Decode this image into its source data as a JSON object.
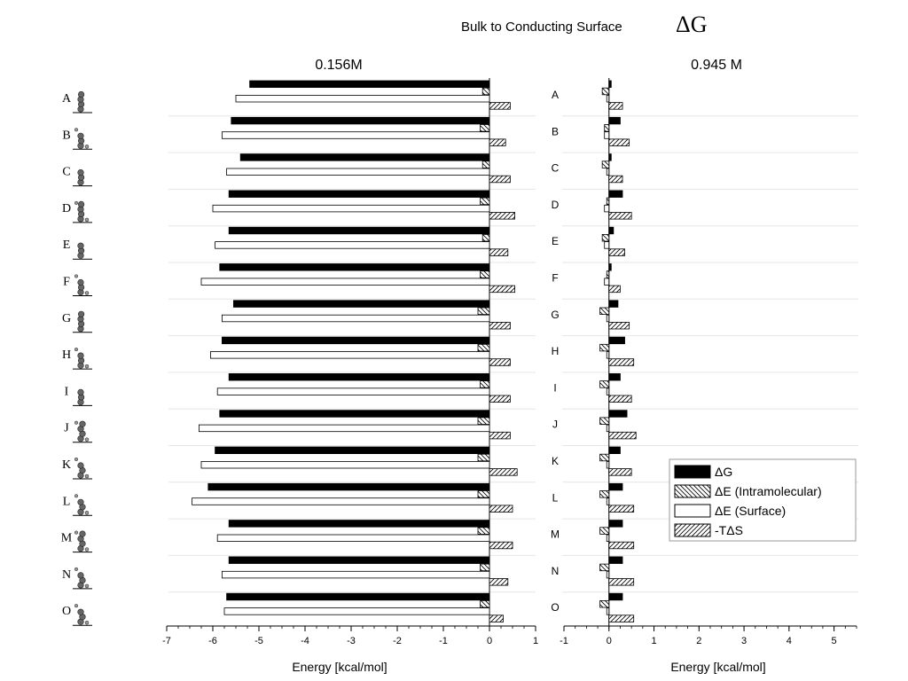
{
  "title": {
    "text": "Bulk to Conducting Surface",
    "symbol": "ΔG"
  },
  "structure_labels": [
    "A",
    "B",
    "C",
    "D",
    "E",
    "F",
    "G",
    "H",
    "I",
    "J",
    "K",
    "L",
    "M",
    "N",
    "O"
  ],
  "legend": {
    "items": [
      {
        "key": "dG",
        "label": "ΔG"
      },
      {
        "key": "dE_intra",
        "label": "ΔE (Intramolecular)"
      },
      {
        "key": "dE_surf",
        "label": "ΔE (Surface)"
      },
      {
        "key": "mTdS",
        "label": "-TΔS"
      }
    ]
  },
  "colors": {
    "dG": "#000000",
    "dE_surf": "#ffffff",
    "stroke": "#000000",
    "grid": "#e6e6e6",
    "molecule": "#666666"
  },
  "chart_data": [
    {
      "type": "bar",
      "orientation": "horizontal",
      "title": "0.156M",
      "xlabel": "Energy [kcal/mol]",
      "xlim": [
        -7,
        1
      ],
      "xticks": [
        "-7",
        "-6",
        "-5",
        "-4",
        "-3",
        "-2",
        "-1",
        "0",
        "1"
      ],
      "categories": [
        "A",
        "B",
        "C",
        "D",
        "E",
        "F",
        "G",
        "H",
        "I",
        "J",
        "K",
        "L",
        "M",
        "N",
        "O"
      ],
      "series": [
        {
          "name": "ΔG",
          "key": "dG",
          "values": [
            -5.2,
            -5.6,
            -5.4,
            -5.65,
            -5.65,
            -5.85,
            -5.55,
            -5.8,
            -5.65,
            -5.85,
            -5.95,
            -6.1,
            -5.65,
            -5.65,
            -5.7
          ]
        },
        {
          "name": "ΔE (Intramolecular)",
          "key": "dE_intra",
          "values": [
            -0.15,
            -0.2,
            -0.15,
            -0.2,
            -0.15,
            -0.2,
            -0.25,
            -0.25,
            -0.2,
            -0.25,
            -0.25,
            -0.25,
            -0.25,
            -0.2,
            -0.2
          ]
        },
        {
          "name": "ΔE (Surface)",
          "key": "dE_surf",
          "values": [
            -5.5,
            -5.8,
            -5.7,
            -6.0,
            -5.95,
            -6.25,
            -5.8,
            -6.05,
            -5.9,
            -6.3,
            -6.25,
            -6.45,
            -5.9,
            -5.8,
            -5.75
          ]
        },
        {
          "name": "-TΔS",
          "key": "mTdS",
          "values": [
            0.45,
            0.35,
            0.45,
            0.55,
            0.4,
            0.55,
            0.45,
            0.45,
            0.45,
            0.45,
            0.6,
            0.5,
            0.5,
            0.4,
            0.3
          ]
        }
      ]
    },
    {
      "type": "bar",
      "orientation": "horizontal",
      "title": "0.945 M",
      "xlabel": "Energy [kcal/mol]",
      "xlim": [
        -1,
        5.5
      ],
      "xticks": [
        "-1",
        "0",
        "1",
        "2",
        "3",
        "4",
        "5"
      ],
      "categories": [
        "A",
        "B",
        "C",
        "D",
        "E",
        "F",
        "G",
        "H",
        "I",
        "J",
        "K",
        "L",
        "M",
        "N",
        "O"
      ],
      "series": [
        {
          "name": "ΔG",
          "key": "dG",
          "values": [
            0.05,
            0.25,
            0.05,
            0.3,
            0.1,
            0.05,
            0.2,
            0.35,
            0.25,
            0.4,
            0.25,
            0.3,
            0.3,
            0.3,
            0.3
          ]
        },
        {
          "name": "ΔE (Intramolecular)",
          "key": "dE_intra",
          "values": [
            -0.15,
            -0.1,
            -0.15,
            -0.05,
            -0.15,
            -0.05,
            -0.2,
            -0.2,
            -0.2,
            -0.2,
            -0.2,
            -0.2,
            -0.2,
            -0.2,
            -0.2
          ]
        },
        {
          "name": "ΔE (Surface)",
          "key": "dE_surf",
          "values": [
            -0.05,
            -0.1,
            -0.05,
            -0.1,
            -0.1,
            -0.1,
            -0.05,
            -0.05,
            -0.05,
            -0.05,
            -0.05,
            -0.05,
            -0.05,
            -0.05,
            -0.05
          ]
        },
        {
          "name": "-TΔS",
          "key": "mTdS",
          "values": [
            0.3,
            0.45,
            0.3,
            0.5,
            0.35,
            0.25,
            0.45,
            0.55,
            0.5,
            0.6,
            0.5,
            0.55,
            0.55,
            0.55,
            0.55
          ]
        }
      ]
    }
  ]
}
